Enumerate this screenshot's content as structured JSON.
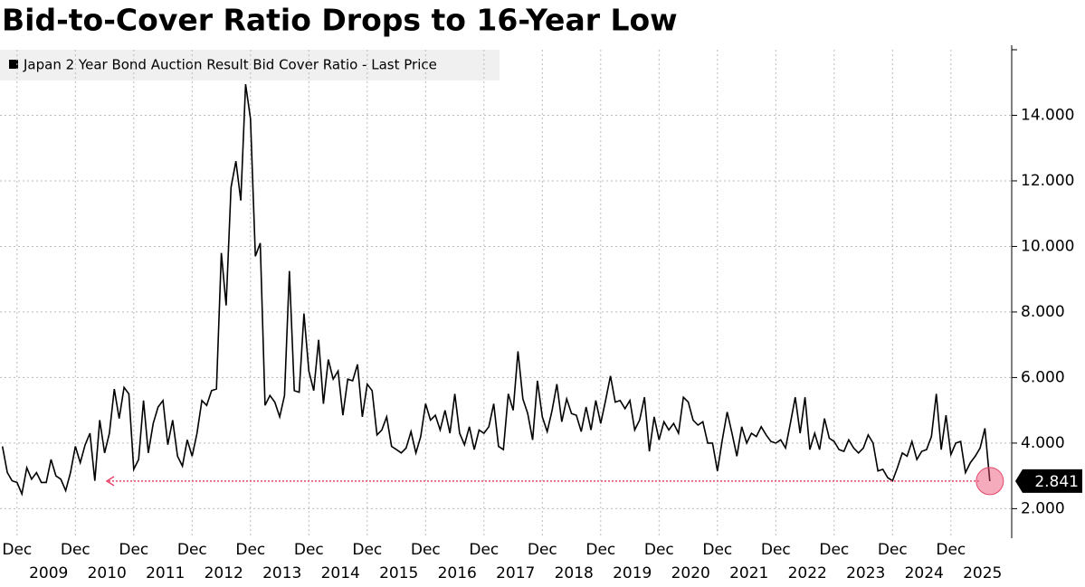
{
  "chart_data": {
    "type": "line",
    "title": "Bid-to-Cover Ratio Drops to 16-Year Low",
    "series": [
      {
        "name": "Japan 2 Year Bond Auction Result Bid Cover Ratio - Last Price",
        "color": "#000000",
        "values": [
          3.9,
          3.1,
          2.85,
          2.8,
          2.45,
          3.25,
          2.9,
          3.1,
          2.8,
          2.8,
          3.5,
          3.0,
          2.9,
          2.55,
          3.1,
          3.9,
          3.4,
          3.95,
          4.3,
          2.85,
          4.7,
          3.7,
          4.3,
          5.65,
          4.75,
          5.7,
          5.5,
          3.2,
          3.5,
          5.3,
          3.7,
          4.6,
          5.1,
          5.3,
          3.95,
          4.7,
          3.6,
          3.3,
          4.1,
          3.6,
          4.3,
          5.3,
          5.15,
          5.6,
          5.65,
          9.8,
          8.2,
          11.8,
          12.6,
          11.4,
          14.95,
          13.9,
          9.7,
          10.1,
          5.15,
          5.45,
          5.25,
          4.8,
          5.45,
          9.25,
          5.6,
          5.55,
          7.95,
          6.2,
          5.6,
          7.15,
          5.2,
          6.55,
          5.95,
          6.2,
          4.85,
          5.95,
          5.9,
          6.4,
          4.8,
          5.8,
          5.6,
          4.25,
          4.4,
          4.8,
          3.9,
          3.8,
          3.7,
          3.85,
          4.35,
          3.7,
          4.2,
          5.2,
          4.7,
          4.85,
          4.4,
          5.0,
          4.3,
          5.5,
          4.3,
          3.95,
          4.5,
          3.8,
          4.4,
          4.3,
          4.5,
          5.2,
          3.9,
          3.8,
          5.5,
          5.0,
          6.8,
          5.35,
          4.9,
          4.1,
          5.9,
          4.8,
          4.35,
          5.0,
          5.8,
          4.65,
          5.35,
          4.9,
          4.85,
          4.35,
          5.1,
          4.4,
          5.3,
          4.6,
          5.3,
          6.05,
          5.25,
          5.3,
          5.05,
          5.3,
          4.4,
          4.7,
          5.4,
          3.75,
          4.8,
          4.1,
          4.65,
          4.4,
          4.6,
          4.3,
          5.4,
          5.25,
          4.7,
          4.55,
          4.65,
          4.0,
          4.0,
          3.15,
          4.1,
          4.95,
          4.3,
          3.6,
          4.5,
          4.0,
          4.3,
          4.2,
          4.5,
          4.25,
          4.05,
          4.0,
          4.1,
          3.85,
          4.6,
          5.4,
          4.3,
          5.4,
          3.8,
          4.3,
          3.8,
          4.75,
          4.15,
          4.05,
          3.8,
          3.75,
          4.1,
          3.85,
          3.7,
          3.85,
          4.25,
          4.0,
          3.15,
          3.2,
          2.95,
          2.85,
          3.25,
          3.7,
          3.6,
          4.05,
          3.5,
          3.75,
          3.8,
          4.2,
          5.5,
          3.8,
          4.85,
          3.65,
          4.0,
          4.05,
          3.1,
          3.4,
          3.6,
          3.85,
          4.45,
          2.841
        ]
      }
    ],
    "x_start": "2008-09",
    "xlim": [
      "2008-09",
      "2026-01"
    ],
    "xticks": [
      {
        "value": "2008-12",
        "label": "Dec"
      },
      {
        "value": "2009-12",
        "label": "Dec"
      },
      {
        "value": "2010-12",
        "label": "Dec"
      },
      {
        "value": "2011-12",
        "label": "Dec"
      },
      {
        "value": "2012-12",
        "label": "Dec"
      },
      {
        "value": "2013-12",
        "label": "Dec"
      },
      {
        "value": "2014-12",
        "label": "Dec"
      },
      {
        "value": "2015-12",
        "label": "Dec"
      },
      {
        "value": "2016-12",
        "label": "Dec"
      },
      {
        "value": "2017-12",
        "label": "Dec"
      },
      {
        "value": "2018-12",
        "label": "Dec"
      },
      {
        "value": "2019-12",
        "label": "Dec"
      },
      {
        "value": "2020-12",
        "label": "Dec"
      },
      {
        "value": "2021-12",
        "label": "Dec"
      },
      {
        "value": "2022-12",
        "label": "Dec"
      },
      {
        "value": "2023-12",
        "label": "Dec"
      },
      {
        "value": "2024-12",
        "label": "Dec"
      }
    ],
    "year_labels": [
      2009,
      2010,
      2011,
      2012,
      2013,
      2014,
      2015,
      2016,
      2017,
      2018,
      2019,
      2020,
      2021,
      2022,
      2023,
      2024,
      2025
    ],
    "ylim": [
      1.1,
      16.0
    ],
    "yticks": [
      {
        "value": 2,
        "label": "2.000"
      },
      {
        "value": 4,
        "label": "4.000"
      },
      {
        "value": 6,
        "label": "6.000"
      },
      {
        "value": 8,
        "label": "8.000"
      },
      {
        "value": 10,
        "label": "10.000"
      },
      {
        "value": 12,
        "label": "12.000"
      },
      {
        "value": 14,
        "label": "14.000"
      }
    ],
    "grid": true,
    "highlight_color": "#e8456b"
  }
}
